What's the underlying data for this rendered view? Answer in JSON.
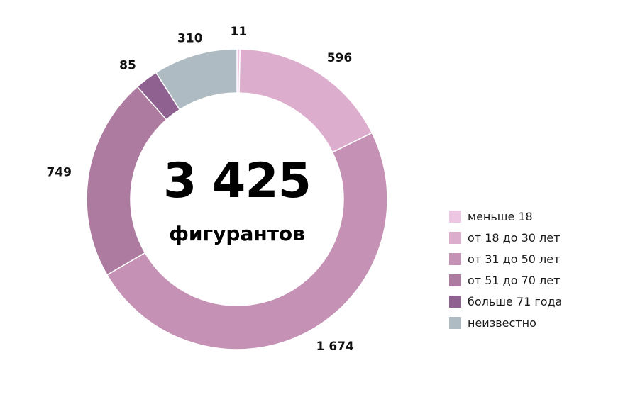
{
  "chart_data": {
    "type": "pie",
    "total_label": "3 425",
    "caption": "фигурантов",
    "slices": [
      {
        "label": "меньше 18",
        "value": 11,
        "value_label": "11",
        "color": "#ecc6e2"
      },
      {
        "label": "от 18 до 30 лет",
        "value": 596,
        "value_label": "596",
        "color": "#dcadcc"
      },
      {
        "label": "от 31 до 50 лет",
        "value": 1674,
        "value_label": "1 674",
        "color": "#c592b5"
      },
      {
        "label": "от 51 до 70 лет",
        "value": 749,
        "value_label": "749",
        "color": "#ad7b9f"
      },
      {
        "label": "больше 71 года",
        "value": 85,
        "value_label": "85",
        "color": "#8e6190"
      },
      {
        "label": "неизвестно",
        "value": 310,
        "value_label": "310",
        "color": "#aebbc3"
      }
    ],
    "legend_position": "right"
  }
}
